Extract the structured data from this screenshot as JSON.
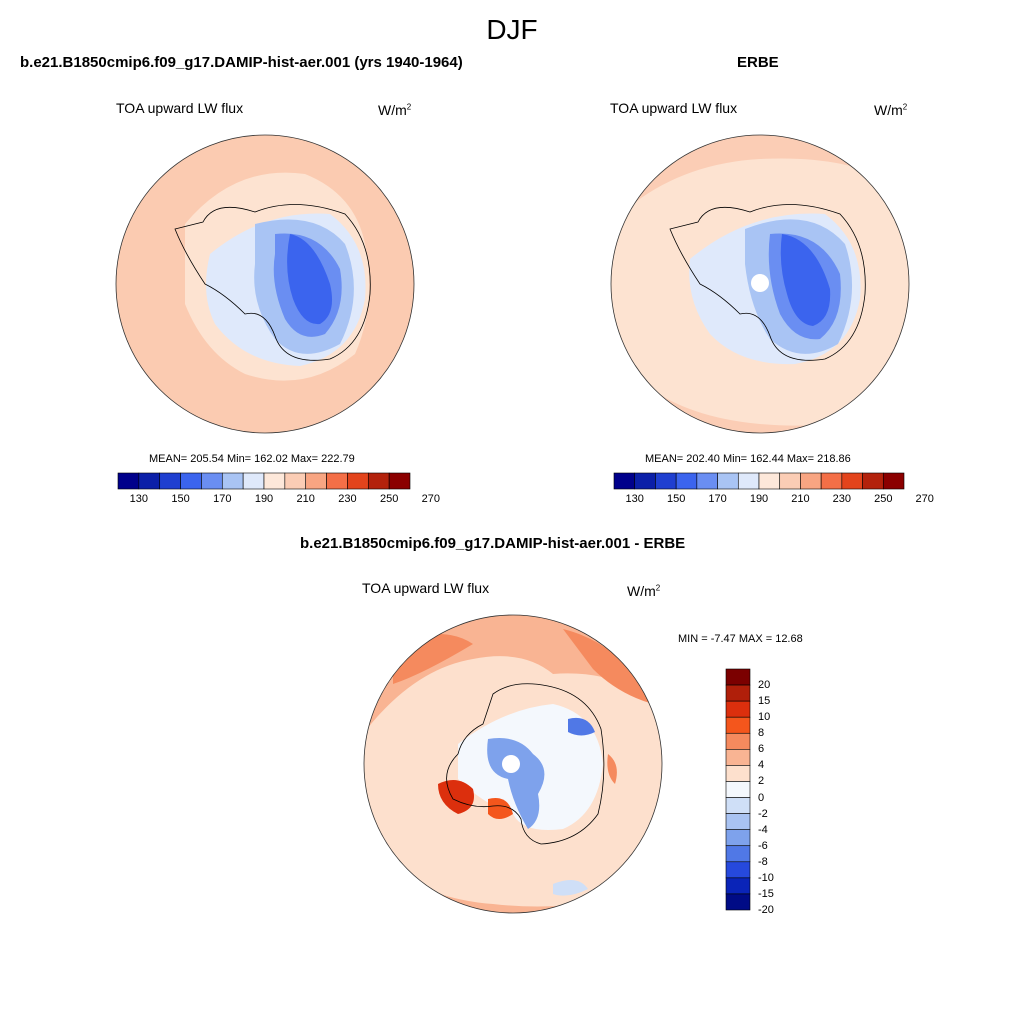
{
  "title": "DJF",
  "panels": [
    {
      "heading": "b.e21.B1850cmip6.f09_g17.DAMIP-hist-aer.001 (yrs 1940-1964)",
      "variable": "TOA upward LW flux",
      "units_base": "W/m",
      "units_exp": "2",
      "stats": "MEAN= 205.54  Min= 162.02  Max= 222.79",
      "colorbar_ticks": [
        "130",
        "150",
        "170",
        "190",
        "210",
        "230",
        "250",
        "270"
      ]
    },
    {
      "heading": "ERBE",
      "variable": "TOA upward LW flux",
      "units_base": "W/m",
      "units_exp": "2",
      "stats": "MEAN= 202.40  Min= 162.44  Max= 218.86",
      "colorbar_ticks": [
        "130",
        "150",
        "170",
        "190",
        "210",
        "230",
        "250",
        "270"
      ]
    },
    {
      "heading": "b.e21.B1850cmip6.f09_g17.DAMIP-hist-aer.001 - ERBE",
      "variable": "TOA upward LW flux",
      "units_base": "W/m",
      "units_exp": "2",
      "stats": "MIN =  -7.47 MAX =  12.68",
      "colorbar_ticks": [
        "20",
        "15",
        "10",
        "8",
        "6",
        "4",
        "2",
        "0",
        "-2",
        "-4",
        "-6",
        "-8",
        "-10",
        "-15",
        "-20"
      ]
    }
  ],
  "colors": {
    "abs_scale": [
      "#00008b",
      "#0b1fa8",
      "#1f3fd0",
      "#3b64ee",
      "#6a8ef2",
      "#a9c4f4",
      "#dfe9fb",
      "#fde8da",
      "#fbcdb5",
      "#f8a582",
      "#f46f47",
      "#e3441c",
      "#b3220c",
      "#8b0000"
    ],
    "diff_scale": [
      "#7b0000",
      "#b01f0a",
      "#dc2f0d",
      "#f4561c",
      "#f58a5e",
      "#f9b493",
      "#fde0cd",
      "#f4f8fd",
      "#cfdff7",
      "#a9c3f2",
      "#7ea2ec",
      "#5078e6",
      "#2649dd",
      "#0a24b8",
      "#000b86"
    ],
    "ocean_model": "#fbcbb1",
    "ocean_erbe": "#fde3d1",
    "coast": "#000000"
  }
}
